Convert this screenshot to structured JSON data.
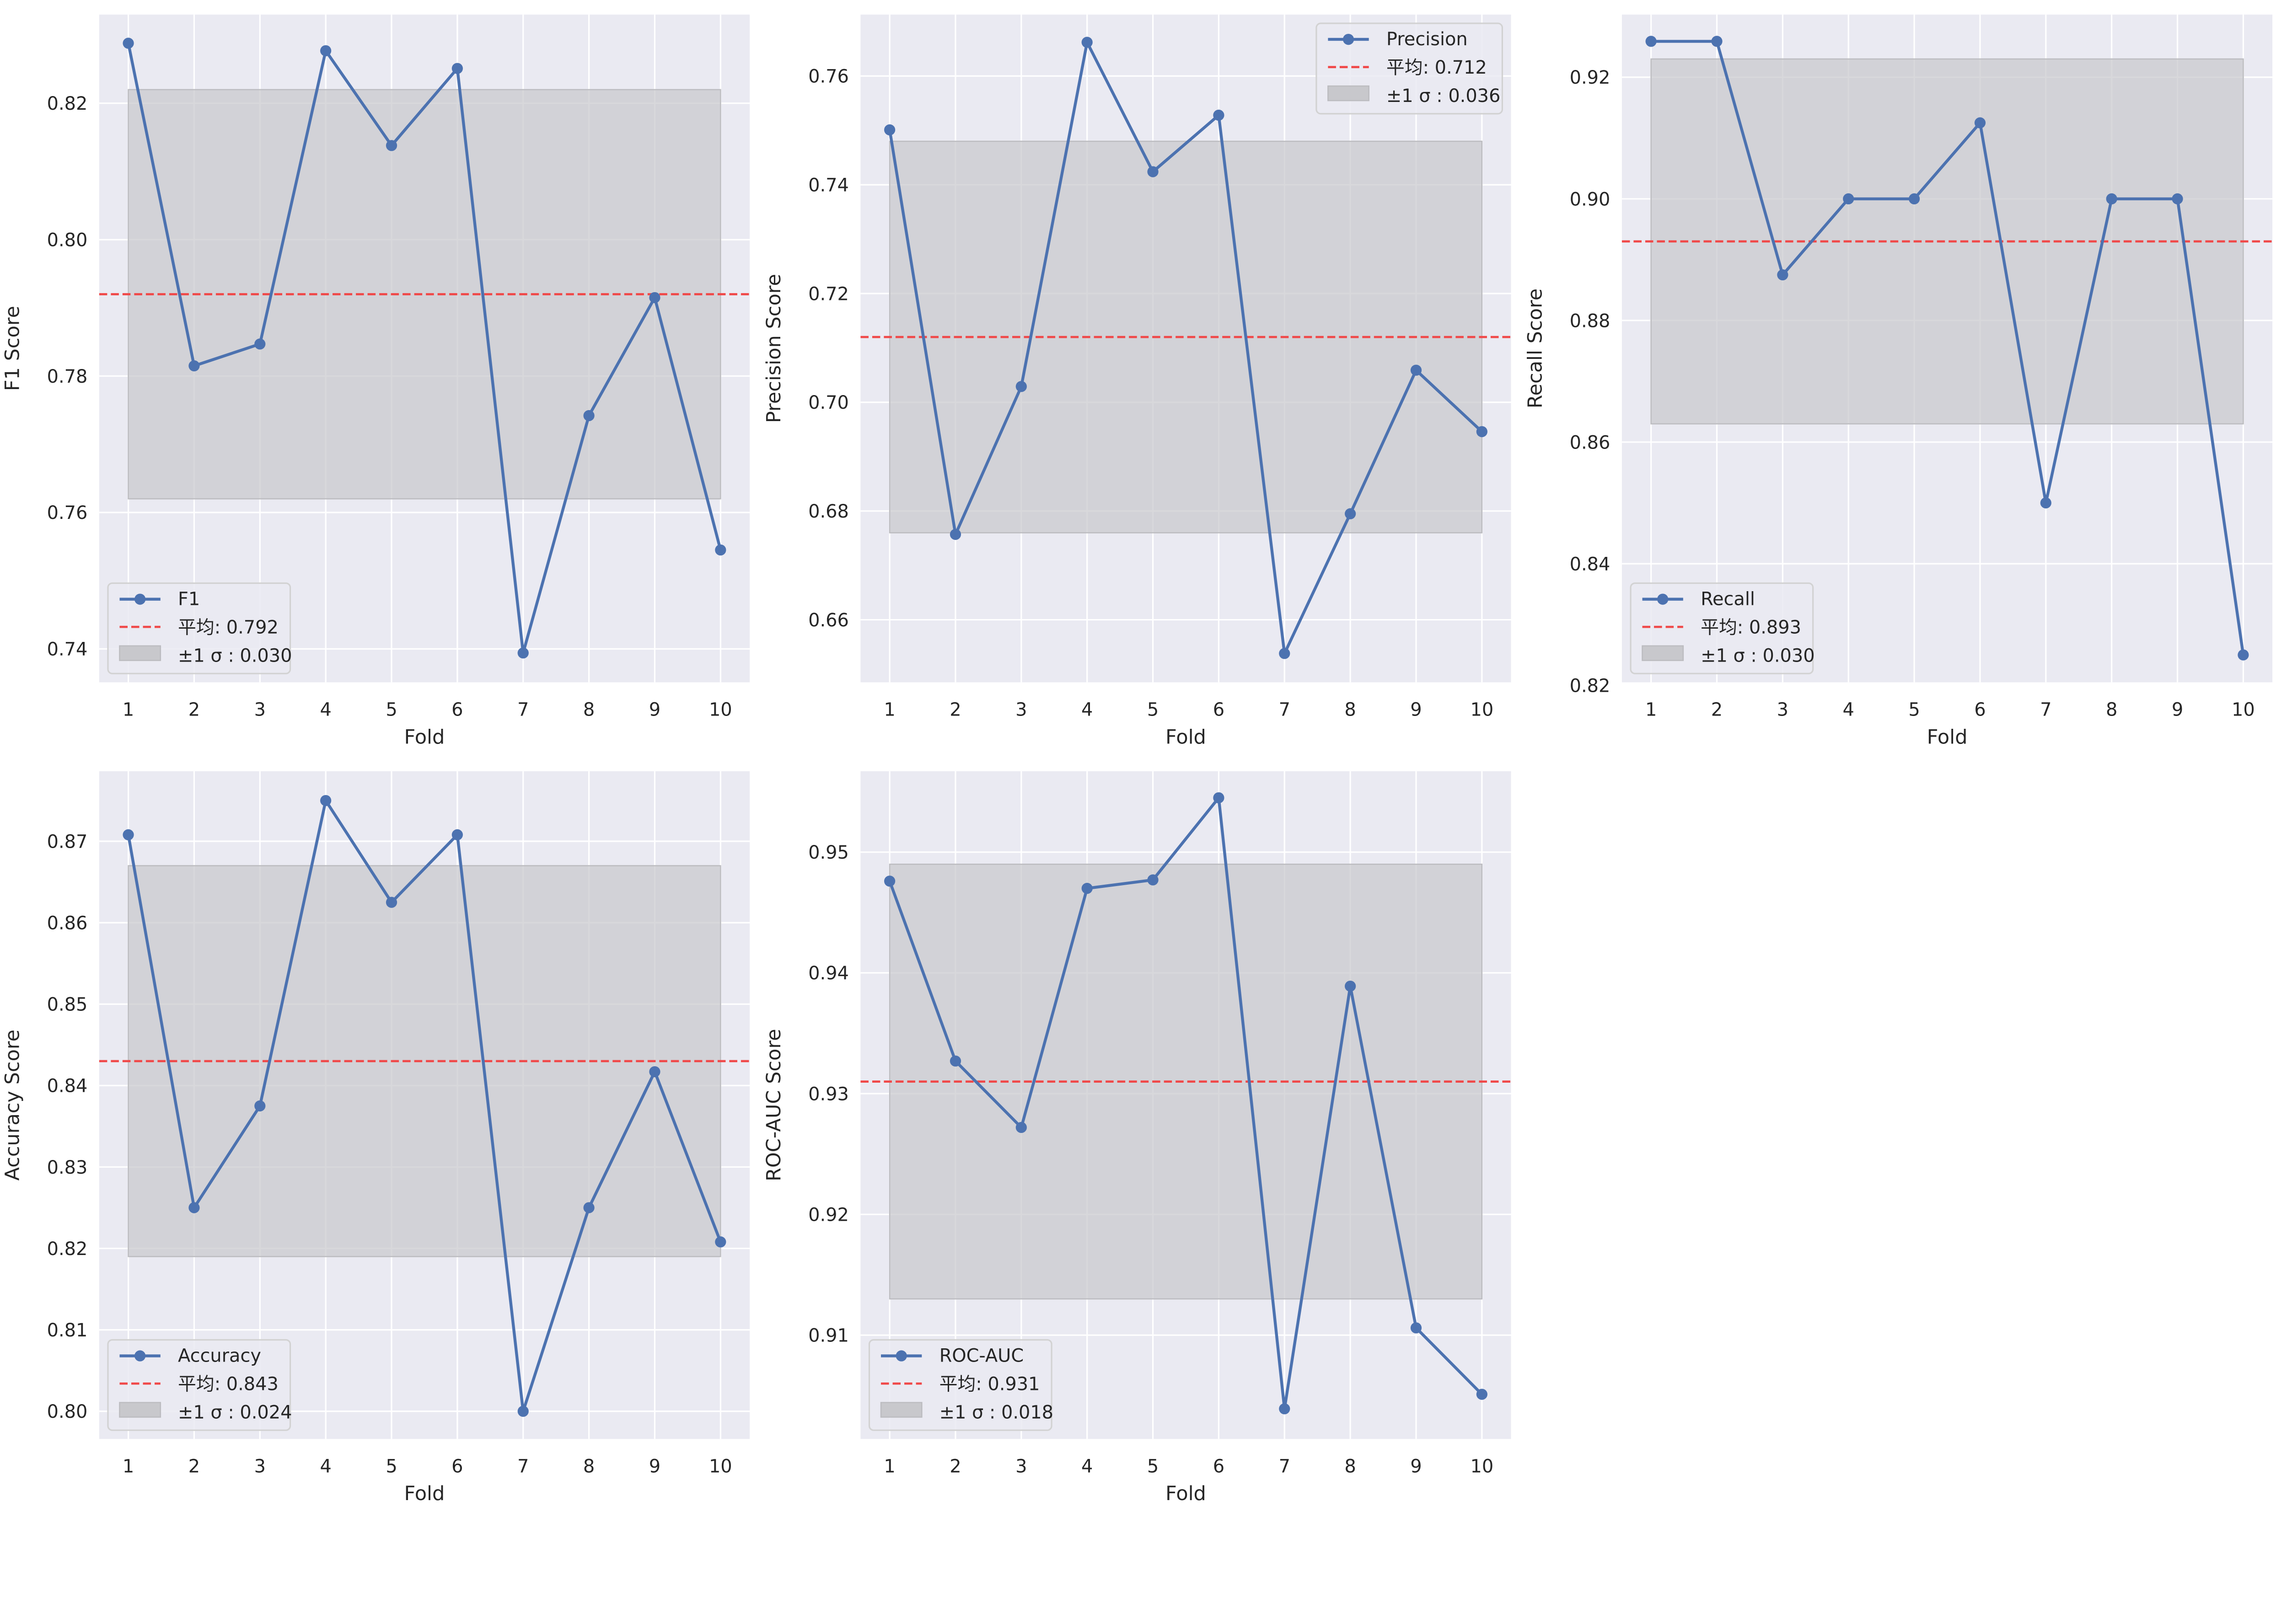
{
  "colors": {
    "line": "#4c72b0",
    "mean": "#f04848",
    "band": "#c8c8cc",
    "plot_bg": "#eaeaf2",
    "grid": "#ffffff"
  },
  "chart_data": [
    {
      "type": "line",
      "xlabel": "Fold",
      "ylabel": "F1 Score",
      "x": [
        1,
        2,
        3,
        4,
        5,
        6,
        7,
        8,
        9,
        10
      ],
      "values": [
        0.8288,
        0.7815,
        0.7847,
        0.8277,
        0.8138,
        0.8251,
        0.7394,
        0.7742,
        0.7915,
        0.7545
      ],
      "mean": 0.792,
      "std": 0.03,
      "ylim": [
        0.7351,
        0.833
      ],
      "yticks": [
        "0.74",
        "0.76",
        "0.78",
        "0.80",
        "0.82"
      ],
      "legend": {
        "position": "lower-left",
        "series": "F1",
        "mean_label": "平均: 0.792",
        "std_label": "±1 σ : 0.030"
      }
    },
    {
      "type": "line",
      "xlabel": "Fold",
      "ylabel": "Precision Score",
      "x": [
        1,
        2,
        3,
        4,
        5,
        6,
        7,
        8,
        9,
        10
      ],
      "values": [
        0.7501,
        0.6757,
        0.7029,
        0.7662,
        0.7424,
        0.7528,
        0.6538,
        0.6795,
        0.7059,
        0.6946
      ],
      "mean": 0.712,
      "std": 0.036,
      "ylim": [
        0.6485,
        0.7713
      ],
      "yticks": [
        "0.66",
        "0.68",
        "0.70",
        "0.72",
        "0.74",
        "0.76"
      ],
      "legend": {
        "position": "upper-right",
        "series": "Precision",
        "mean_label": "平均: 0.712",
        "std_label": "±1 σ : 0.036"
      }
    },
    {
      "type": "line",
      "xlabel": "Fold",
      "ylabel": "Recall Score",
      "x": [
        1,
        2,
        3,
        4,
        5,
        6,
        7,
        8,
        9,
        10
      ],
      "values": [
        0.9259,
        0.9259,
        0.8875,
        0.9,
        0.9,
        0.9125,
        0.85,
        0.9,
        0.9,
        0.825
      ],
      "mean": 0.893,
      "std": 0.03,
      "ylim": [
        0.8205,
        0.9303
      ],
      "yticks": [
        "0.82",
        "0.84",
        "0.86",
        "0.88",
        "0.90",
        "0.92"
      ],
      "legend": {
        "position": "lower-left",
        "series": "Recall",
        "mean_label": "平均: 0.893",
        "std_label": "±1 σ : 0.030"
      }
    },
    {
      "type": "line",
      "xlabel": "Fold",
      "ylabel": "Accuracy Score",
      "x": [
        1,
        2,
        3,
        4,
        5,
        6,
        7,
        8,
        9,
        10
      ],
      "values": [
        0.8708,
        0.825,
        0.8375,
        0.875,
        0.8625,
        0.8708,
        0.8,
        0.825,
        0.8417,
        0.8208
      ],
      "mean": 0.843,
      "std": 0.024,
      "ylim": [
        0.7966,
        0.8786
      ],
      "yticks": [
        "0.80",
        "0.81",
        "0.82",
        "0.83",
        "0.84",
        "0.85",
        "0.86",
        "0.87"
      ],
      "legend": {
        "position": "lower-left",
        "series": "Accuracy",
        "mean_label": "平均: 0.843",
        "std_label": "±1 σ : 0.024"
      }
    },
    {
      "type": "line",
      "xlabel": "Fold",
      "ylabel": "ROC-AUC Score",
      "x": [
        1,
        2,
        3,
        4,
        5,
        6,
        7,
        8,
        9,
        10
      ],
      "values": [
        0.9476,
        0.9327,
        0.9272,
        0.947,
        0.9477,
        0.9545,
        0.9039,
        0.9389,
        0.9106,
        0.9051
      ],
      "mean": 0.931,
      "std": 0.018,
      "ylim": [
        0.9014,
        0.9567
      ],
      "yticks": [
        "0.91",
        "0.92",
        "0.93",
        "0.94",
        "0.95"
      ],
      "legend": {
        "position": "lower-left",
        "series": "ROC-AUC",
        "mean_label": "平均: 0.931",
        "std_label": "±1 σ : 0.018"
      }
    }
  ]
}
